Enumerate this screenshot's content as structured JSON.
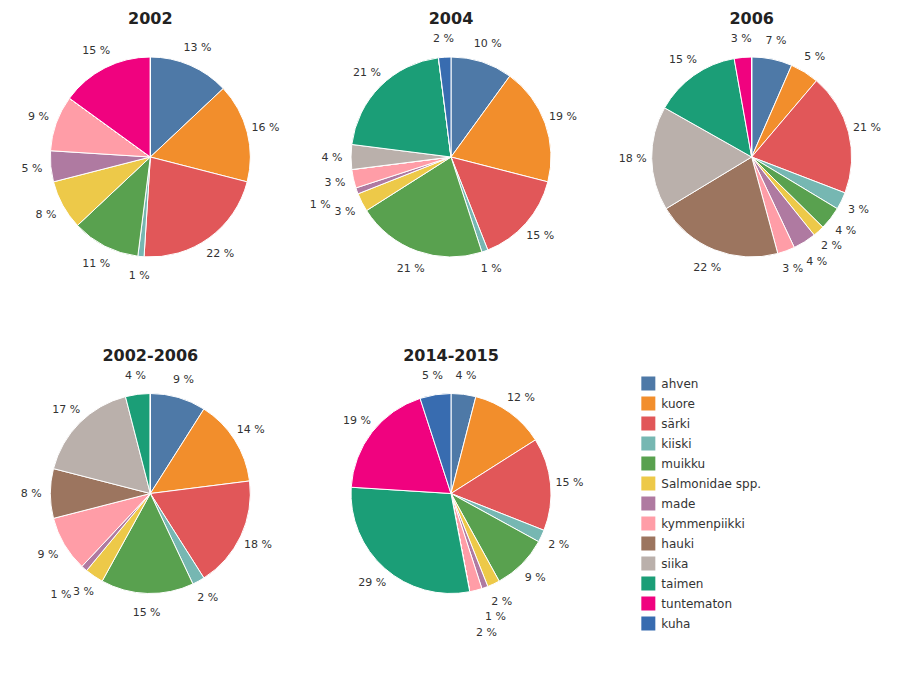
{
  "chart_data": [
    {
      "type": "pie",
      "title": "2002",
      "legend": "right",
      "data_labels": true,
      "categories": [
        "ahven",
        "kuore",
        "särki",
        "kiiski",
        "muikku",
        "Salmonidae spp.",
        "made",
        "kymmenpiikki",
        "hauki",
        "siika",
        "taimen",
        "tuntematon",
        "kuha"
      ],
      "values": [
        13,
        16,
        22,
        1,
        11,
        8,
        5,
        9,
        0,
        0,
        0,
        15,
        0
      ],
      "value_labels": [
        "13 %",
        "16 %",
        "22 %",
        "1 %",
        "11 %",
        "8 %",
        "5 %",
        "9 %",
        null,
        null,
        null,
        "15 %",
        null
      ]
    },
    {
      "type": "pie",
      "title": "2004",
      "data_labels": true,
      "categories": [
        "ahven",
        "kuore",
        "särki",
        "kiiski",
        "muikku",
        "Salmonidae spp.",
        "made",
        "kymmenpiikki",
        "hauki",
        "siika",
        "taimen",
        "tuntematon",
        "kuha"
      ],
      "values": [
        10,
        19,
        15,
        1,
        21,
        3,
        1,
        3,
        0,
        4,
        21,
        0,
        2
      ],
      "value_labels": [
        "10 %",
        "19 %",
        "15 %",
        "1 %",
        "21 %",
        "3 %",
        "1 %",
        "3 %",
        null,
        "4 %",
        "21 %",
        null,
        "2 %"
      ]
    },
    {
      "type": "pie",
      "title": "2006",
      "data_labels": true,
      "categories": [
        "ahven",
        "kuore",
        "särki",
        "kiiski",
        "muikku",
        "Salmonidae spp.",
        "made",
        "kymmenpiikki",
        "hauki",
        "siika",
        "taimen",
        "tuntematon",
        "kuha"
      ],
      "values": [
        7,
        5,
        21,
        3,
        4,
        2,
        4,
        3,
        22,
        18,
        15,
        3,
        0
      ],
      "value_labels": [
        "7 %",
        "5 %",
        "21 %",
        "3 %",
        "4 %",
        "2 %",
        "4 %",
        "3 %",
        "22 %",
        "18 %",
        "15 %",
        "3 %",
        null
      ]
    },
    {
      "type": "pie",
      "title": "2002-2006",
      "data_labels": true,
      "categories": [
        "ahven",
        "kuore",
        "särki",
        "kiiski",
        "muikku",
        "Salmonidae spp.",
        "made",
        "kymmenpiikki",
        "hauki",
        "siika",
        "taimen",
        "tuntematon",
        "kuha"
      ],
      "values": [
        9,
        14,
        18,
        2,
        15,
        3,
        1,
        9,
        8,
        17,
        4,
        0,
        0
      ],
      "value_labels": [
        "9 %",
        "14 %",
        "18 %",
        "2 %",
        "15 %",
        "3 %",
        "1 %",
        "9 %",
        "8 %",
        "17 %",
        "4 %",
        null,
        null
      ]
    },
    {
      "type": "pie",
      "title": "2014-2015",
      "data_labels": true,
      "categories": [
        "ahven",
        "kuore",
        "särki",
        "kiiski",
        "muikku",
        "Salmonidae spp.",
        "made",
        "kymmenpiikki",
        "hauki",
        "siika",
        "taimen",
        "tuntematon",
        "kuha"
      ],
      "values": [
        4,
        12,
        15,
        2,
        9,
        2,
        1,
        2,
        0,
        0,
        29,
        19,
        5
      ],
      "value_labels": [
        "4 %",
        "12 %",
        "15 %",
        "2 %",
        "9 %",
        "2 %",
        "1 %",
        "2 %",
        null,
        null,
        "29 %",
        "19 %",
        "5 %"
      ]
    }
  ]
}
